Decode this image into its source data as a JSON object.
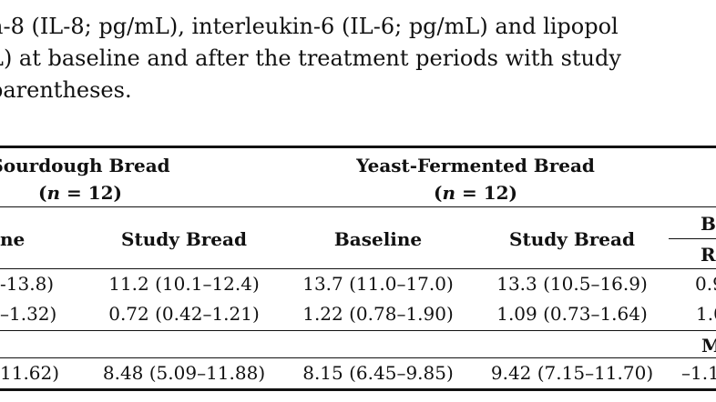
{
  "caption": {
    "line1": "n-8 (IL-8; pg/mL), interleukin-6 (IL-6; pg/mL) and lipopol",
    "line2": "L) at baseline and after the treatment periods with study",
    "line3": "parentheses."
  },
  "table": {
    "groups": [
      {
        "title": "Sourdough Bread",
        "n_var": "n",
        "n_text": " = 12)",
        "n_open": "("
      },
      {
        "title": "Yeast-Fermented Bread",
        "n_var": "n",
        "n_text": " = 12)",
        "n_open": "("
      }
    ],
    "columns": [
      "ne",
      "Study Bread",
      "Baseline",
      "Study Bread",
      "B",
      "R"
    ],
    "rows": [
      [
        "-13.8)",
        "11.2 (10.1–12.4)",
        "13.7 (11.0–17.0)",
        "13.3 (10.5–16.9)",
        "0.9"
      ],
      [
        "–1.32)",
        "0.72 (0.42–1.21)",
        "1.22 (0.78–1.90)",
        "1.09 (0.73–1.64)",
        "1.0"
      ],
      [
        "",
        "",
        "",
        "",
        "M"
      ],
      [
        "11.62)",
        "8.48 (5.09–11.88)",
        "8.15 (6.45–9.85)",
        "9.42 (7.15–11.70)",
        "–1.1"
      ]
    ]
  }
}
